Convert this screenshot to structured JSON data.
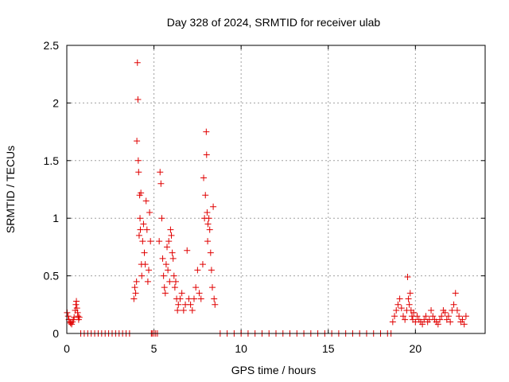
{
  "chart_data": {
    "type": "scatter",
    "title": "Day 328 of 2024, SRMTID for receiver ulab",
    "xlabel": "GPS time / hours",
    "ylabel": "SRMTID / TECUs",
    "xlim": [
      0,
      24
    ],
    "ylim": [
      0,
      2.5
    ],
    "xticks": [
      0,
      5,
      10,
      15,
      20
    ],
    "yticks": [
      0,
      0.5,
      1,
      1.5,
      2,
      2.5
    ],
    "xtick_labels": [
      "0",
      "5",
      "10",
      "15",
      "20"
    ],
    "ytick_labels": [
      "0",
      "0.5",
      "1",
      "1.5",
      "2",
      "2.5"
    ],
    "grid": true,
    "marker": "plus",
    "series": [
      {
        "name": "SRMTID",
        "color": "#e00000",
        "x": [
          0.02,
          0.08,
          0.12,
          0.18,
          0.22,
          0.28,
          0.32,
          0.38,
          0.42,
          0.48,
          0.52,
          0.55,
          0.58,
          0.62,
          0.65,
          0.68,
          0.72,
          0.8,
          1.0,
          1.2,
          1.4,
          1.6,
          1.8,
          2.0,
          2.2,
          2.4,
          2.6,
          2.8,
          3.0,
          3.2,
          3.4,
          3.6,
          3.85,
          3.9,
          3.95,
          4.0,
          4.02,
          4.05,
          4.08,
          4.1,
          4.12,
          4.15,
          4.18,
          4.2,
          4.22,
          4.25,
          4.28,
          4.3,
          4.35,
          4.4,
          4.45,
          4.5,
          4.55,
          4.6,
          4.65,
          4.7,
          4.75,
          4.8,
          4.85,
          4.9,
          5.0,
          5.1,
          5.2,
          5.3,
          5.35,
          5.4,
          5.45,
          5.5,
          5.55,
          5.6,
          5.65,
          5.7,
          5.75,
          5.8,
          5.85,
          5.9,
          5.95,
          6.0,
          6.05,
          6.1,
          6.15,
          6.2,
          6.25,
          6.3,
          6.35,
          6.4,
          6.5,
          6.6,
          6.7,
          6.8,
          6.9,
          7.0,
          7.1,
          7.2,
          7.3,
          7.4,
          7.5,
          7.6,
          7.7,
          7.8,
          7.85,
          7.9,
          7.95,
          8.0,
          8.02,
          8.05,
          8.08,
          8.1,
          8.15,
          8.2,
          8.25,
          8.3,
          8.35,
          8.4,
          8.45,
          8.5,
          8.8,
          9.2,
          9.6,
          10.0,
          10.4,
          10.8,
          11.2,
          11.6,
          12.0,
          12.4,
          12.8,
          13.2,
          13.6,
          14.0,
          14.4,
          14.8,
          15.2,
          15.6,
          16.0,
          16.4,
          16.8,
          17.2,
          17.6,
          18.0,
          18.4,
          18.6,
          18.7,
          18.8,
          18.9,
          19.0,
          19.1,
          19.2,
          19.3,
          19.4,
          19.5,
          19.55,
          19.6,
          19.65,
          19.7,
          19.75,
          19.8,
          19.85,
          19.9,
          20.0,
          20.1,
          20.2,
          20.3,
          20.4,
          20.5,
          20.6,
          20.7,
          20.8,
          20.9,
          21.0,
          21.1,
          21.2,
          21.3,
          21.4,
          21.5,
          21.6,
          21.7,
          21.8,
          21.9,
          22.0,
          22.1,
          22.2,
          22.3,
          22.4,
          22.5,
          22.6,
          22.7,
          22.8,
          22.9
        ],
        "y": [
          0.18,
          0.15,
          0.12,
          0.1,
          0.09,
          0.08,
          0.1,
          0.12,
          0.14,
          0.2,
          0.25,
          0.28,
          0.22,
          0.18,
          0.15,
          0.12,
          0.14,
          0.0,
          0.0,
          0.0,
          0.0,
          0.0,
          0.0,
          0.0,
          0.0,
          0.0,
          0.0,
          0.0,
          0.0,
          0.0,
          0.0,
          0.0,
          0.3,
          0.4,
          0.35,
          0.45,
          1.67,
          2.35,
          2.03,
          1.5,
          1.4,
          0.85,
          1.2,
          1.0,
          0.9,
          1.22,
          0.6,
          0.5,
          0.8,
          0.95,
          0.7,
          0.6,
          1.15,
          0.9,
          0.45,
          0.55,
          1.05,
          0.8,
          0.0,
          0.0,
          0.0,
          0.0,
          0.0,
          0.8,
          1.4,
          1.3,
          1.0,
          0.65,
          0.5,
          0.4,
          0.35,
          0.6,
          0.75,
          0.55,
          0.8,
          0.45,
          0.9,
          0.85,
          0.7,
          0.65,
          0.5,
          0.4,
          0.45,
          0.3,
          0.2,
          0.25,
          0.3,
          0.35,
          0.2,
          0.25,
          0.72,
          0.3,
          0.25,
          0.2,
          0.3,
          0.4,
          0.55,
          0.35,
          0.3,
          0.6,
          1.35,
          1.0,
          1.2,
          1.75,
          1.55,
          1.05,
          0.8,
          0.95,
          1.0,
          0.9,
          0.7,
          0.55,
          0.4,
          1.1,
          0.3,
          0.25,
          0.0,
          0.0,
          0.0,
          0.0,
          0.0,
          0.0,
          0.0,
          0.0,
          0.0,
          0.0,
          0.0,
          0.0,
          0.0,
          0.0,
          0.0,
          0.0,
          0.0,
          0.0,
          0.0,
          0.0,
          0.0,
          0.0,
          0.0,
          0.0,
          0.0,
          0.0,
          0.1,
          0.15,
          0.2,
          0.25,
          0.3,
          0.22,
          0.15,
          0.12,
          0.2,
          0.49,
          0.3,
          0.25,
          0.35,
          0.2,
          0.15,
          0.12,
          0.18,
          0.1,
          0.15,
          0.12,
          0.1,
          0.08,
          0.12,
          0.15,
          0.1,
          0.12,
          0.2,
          0.15,
          0.12,
          0.1,
          0.08,
          0.12,
          0.15,
          0.2,
          0.18,
          0.12,
          0.15,
          0.1,
          0.2,
          0.25,
          0.35,
          0.2,
          0.15,
          0.1,
          0.12,
          0.08,
          0.15
        ]
      }
    ]
  }
}
